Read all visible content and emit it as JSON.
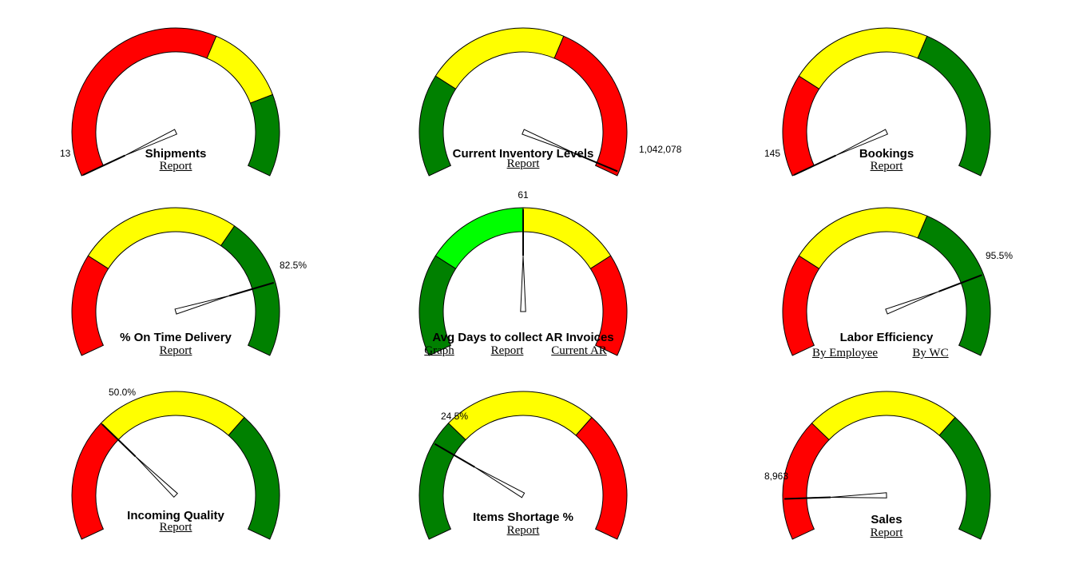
{
  "chart_data": [
    {
      "type": "gauge",
      "title": "Shipments",
      "value_label": "13",
      "needle_fraction": 0.0,
      "bands": [
        {
          "from": 0,
          "to": 0.6,
          "color": "#ff0000"
        },
        {
          "from": 0.6,
          "to": 0.8,
          "color": "#ffff00"
        },
        {
          "from": 0.8,
          "to": 1,
          "color": "#008000"
        }
      ],
      "links": [
        "Report"
      ]
    },
    {
      "type": "gauge",
      "title": "Current Inventory Levels",
      "value_label": "1,042,078",
      "needle_fraction": 0.99,
      "bands": [
        {
          "from": 0,
          "to": 0.25,
          "color": "#008000"
        },
        {
          "from": 0.25,
          "to": 0.6,
          "color": "#ffff00"
        },
        {
          "from": 0.6,
          "to": 1,
          "color": "#ff0000"
        }
      ],
      "links": [
        "Report"
      ]
    },
    {
      "type": "gauge",
      "title": "Bookings",
      "value_label": "145",
      "needle_fraction": 0.0,
      "bands": [
        {
          "from": 0,
          "to": 0.25,
          "color": "#ff0000"
        },
        {
          "from": 0.25,
          "to": 0.6,
          "color": "#ffff00"
        },
        {
          "from": 0.6,
          "to": 1,
          "color": "#008000"
        }
      ],
      "links": [
        "Report"
      ]
    },
    {
      "type": "gauge",
      "title": "% On Time Delivery",
      "value_label": "82.5%",
      "needle_fraction": 0.82,
      "bands": [
        {
          "from": 0,
          "to": 0.25,
          "color": "#ff0000"
        },
        {
          "from": 0.25,
          "to": 0.65,
          "color": "#ffff00"
        },
        {
          "from": 0.65,
          "to": 1,
          "color": "#008000"
        }
      ],
      "links": [
        "Report"
      ]
    },
    {
      "type": "gauge",
      "title": "Avg Days to collect AR Invoices",
      "value_label": "61",
      "needle_fraction": 0.5,
      "bands": [
        {
          "from": 0,
          "to": 0.25,
          "color": "#008000"
        },
        {
          "from": 0.25,
          "to": 0.5,
          "color": "#00ff00"
        },
        {
          "from": 0.5,
          "to": 0.75,
          "color": "#ffff00"
        },
        {
          "from": 0.75,
          "to": 1,
          "color": "#ff0000"
        }
      ],
      "links": [
        "Graph",
        "Report",
        "Current AR"
      ]
    },
    {
      "type": "gauge",
      "title": "Labor Efficiency",
      "value_label": "95.5%",
      "needle_fraction": 0.8,
      "bands": [
        {
          "from": 0,
          "to": 0.25,
          "color": "#ff0000"
        },
        {
          "from": 0.25,
          "to": 0.6,
          "color": "#ffff00"
        },
        {
          "from": 0.6,
          "to": 1,
          "color": "#008000"
        }
      ],
      "links": [
        "By Employee",
        "By WC"
      ]
    },
    {
      "type": "gauge",
      "title": "Incoming Quality",
      "value_label": "50.0%",
      "needle_fraction": 0.3,
      "bands": [
        {
          "from": 0,
          "to": 0.3,
          "color": "#ff0000"
        },
        {
          "from": 0.3,
          "to": 0.68,
          "color": "#ffff00"
        },
        {
          "from": 0.68,
          "to": 1,
          "color": "#008000"
        }
      ],
      "links": [
        "Report"
      ]
    },
    {
      "type": "gauge",
      "title": "Items Shortage %",
      "value_label": "24.5%",
      "needle_fraction": 0.24,
      "bands": [
        {
          "from": 0,
          "to": 0.3,
          "color": "#008000"
        },
        {
          "from": 0.3,
          "to": 0.68,
          "color": "#ffff00"
        },
        {
          "from": 0.68,
          "to": 1,
          "color": "#ff0000"
        }
      ],
      "links": [
        "Report"
      ]
    },
    {
      "type": "gauge",
      "title": "Sales",
      "value_label": "8,963",
      "needle_fraction": 0.1,
      "bands": [
        {
          "from": 0,
          "to": 0.3,
          "color": "#ff0000"
        },
        {
          "from": 0.3,
          "to": 0.68,
          "color": "#ffff00"
        },
        {
          "from": 0.68,
          "to": 1,
          "color": "#008000"
        }
      ],
      "links": [
        "Report"
      ]
    }
  ]
}
